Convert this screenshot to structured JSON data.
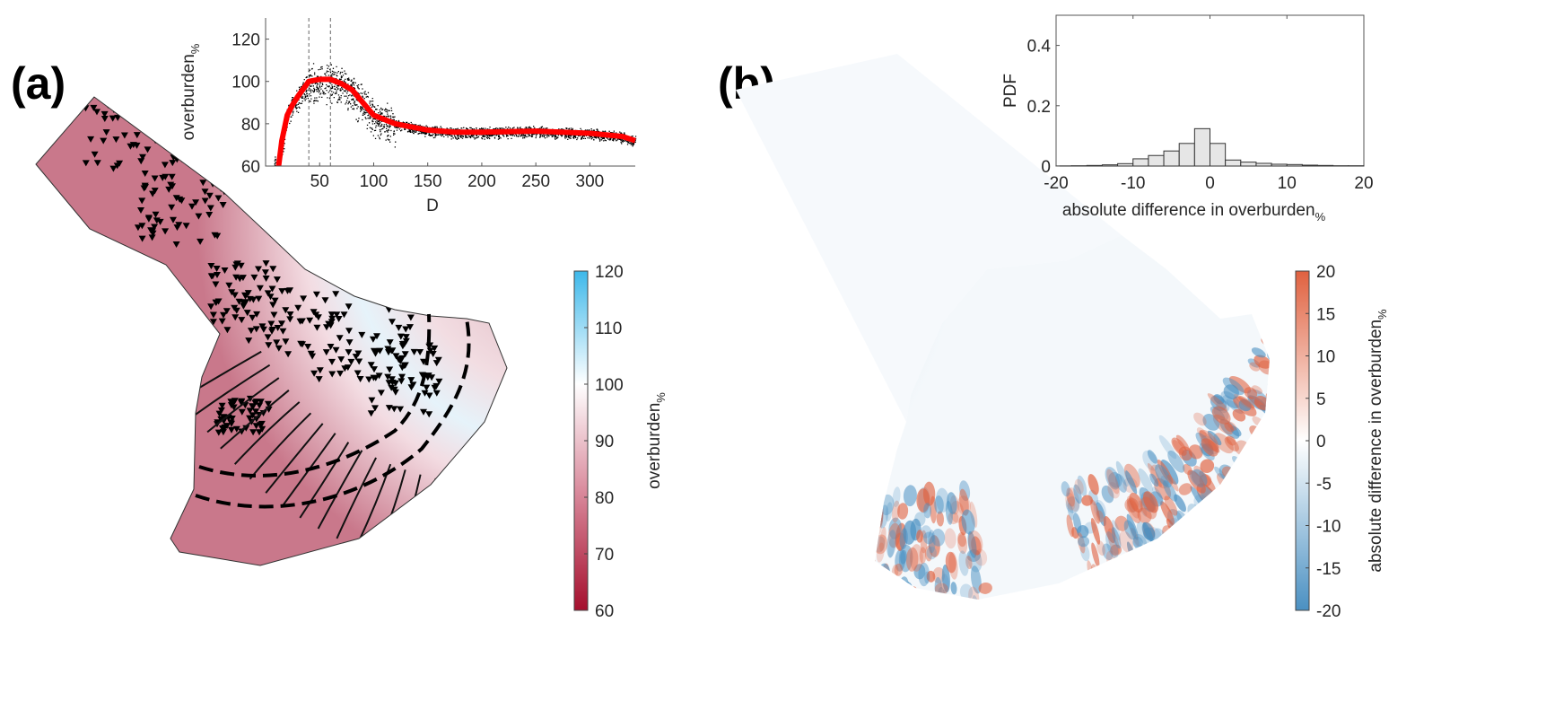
{
  "panels": {
    "a": {
      "label": "(a)"
    },
    "b": {
      "label": "(b)"
    }
  },
  "chart_data": [
    {
      "type": "scatter",
      "id": "inset-a",
      "xlabel": "D",
      "ylabel": "overburden",
      "ylabel_sub": "%",
      "xlim": [
        0,
        342
      ],
      "ylim": [
        60,
        130
      ],
      "xticks": [
        50,
        100,
        150,
        200,
        250,
        300
      ],
      "yticks": [
        60,
        80,
        100,
        120
      ],
      "vlines": [
        40,
        60
      ],
      "series": [
        {
          "name": "mean",
          "color": "#ff0000",
          "x": [
            12,
            15,
            20,
            25,
            30,
            40,
            50,
            60,
            70,
            80,
            90,
            100,
            120,
            150,
            175,
            200,
            250,
            300,
            330,
            342
          ],
          "y": [
            60,
            72,
            84,
            89,
            93,
            100,
            101,
            101,
            99,
            96,
            90,
            84,
            80,
            77,
            76,
            76,
            76.5,
            75.5,
            74,
            72
          ]
        }
      ]
    },
    {
      "type": "bar",
      "id": "inset-b",
      "xlabel": "absolute difference in overburden",
      "xlabel_sub": "%",
      "ylabel": "PDF",
      "xlim": [
        -20,
        20
      ],
      "ylim": [
        0,
        0.5
      ],
      "xticks": [
        -20,
        -10,
        0,
        10,
        20
      ],
      "yticks": [
        0,
        0.2,
        0.4
      ],
      "bin_edges": [
        -20,
        -18,
        -16,
        -14,
        -12,
        -10,
        -8,
        -6,
        -4,
        -2,
        0,
        2,
        4,
        6,
        8,
        10,
        12,
        14,
        16,
        18,
        20
      ],
      "values": [
        0.0005,
        0.001,
        0.002,
        0.004,
        0.008,
        0.024,
        0.035,
        0.05,
        0.075,
        0.124,
        0.075,
        0.02,
        0.013,
        0.009,
        0.006,
        0.005,
        0.003,
        0.002,
        0.001,
        0.001
      ]
    },
    {
      "type": "heatmap",
      "id": "colorbar-a",
      "label": "overburden",
      "label_sub": "%",
      "range": [
        60,
        120
      ],
      "ticks": [
        60,
        70,
        80,
        90,
        100,
        110,
        120
      ],
      "colors": {
        "low": "#a50f2d",
        "mid": "#ffffff",
        "high": "#3db8ea"
      }
    },
    {
      "type": "heatmap",
      "id": "colorbar-b",
      "label": "absolute difference in overburden",
      "label_sub": "%",
      "range": [
        -20,
        20
      ],
      "ticks": [
        -20,
        -15,
        -10,
        -5,
        0,
        5,
        10,
        15,
        20
      ],
      "colors": {
        "low": "#4a90c2",
        "mid": "#ffffff",
        "high": "#e0613f"
      }
    }
  ]
}
